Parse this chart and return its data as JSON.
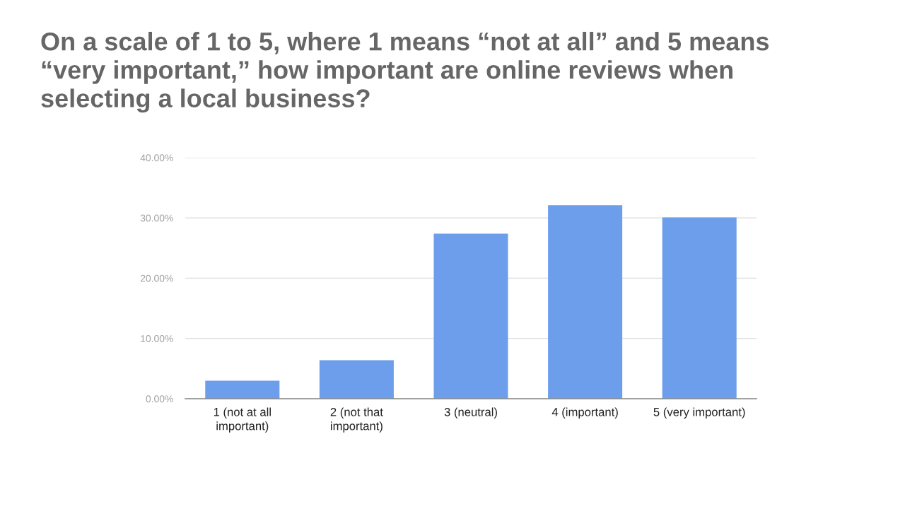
{
  "chart_data": {
    "type": "bar",
    "title": "On a scale of 1 to 5, where 1 means “not at all” and 5 means “very important,” how important are online reviews when selecting a local business?",
    "categories": [
      "1 (not at all important)",
      "2 (not that important)",
      "3 (neutral)",
      "4 (important)",
      "5 (very important)"
    ],
    "values": [
      3.0,
      6.4,
      27.4,
      32.1,
      30.1
    ],
    "color": "#6d9eeb",
    "ylim": [
      0,
      40
    ],
    "yticks": [
      {
        "value": 0,
        "label": "0.00%"
      },
      {
        "value": 10,
        "label": "10.00%"
      },
      {
        "value": 20,
        "label": "20.00%"
      },
      {
        "value": 30,
        "label": "30.00%"
      },
      {
        "value": 40,
        "label": "40.00%"
      }
    ],
    "grid": "y",
    "legend": false
  }
}
